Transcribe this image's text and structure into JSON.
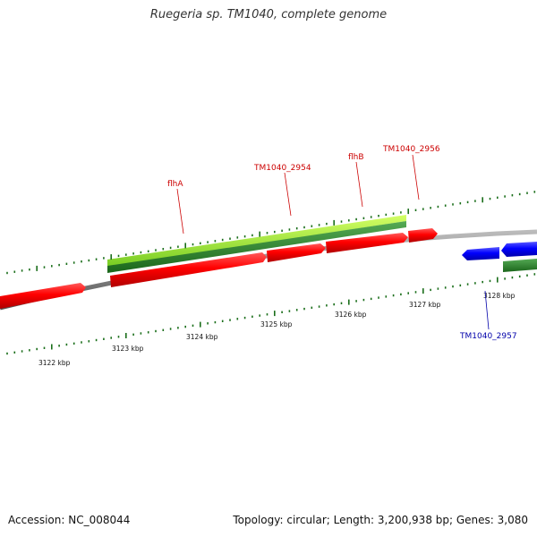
{
  "title": "Ruegeria sp. TM1040, complete genome",
  "footer": {
    "accession": "Accession: NC_008044",
    "summary": "Topology: circular; Length: 3,200,938 bp; Genes: 3,080"
  },
  "colors": {
    "forward_gene": "#ff0000",
    "reverse_gene": "#0000ff",
    "forward_label": "#cc0000",
    "reverse_label": "#0000aa",
    "tick": "#1a6e1a",
    "backbone": "#888888",
    "operon_light": "#99ee33",
    "operon_dark": "#228822"
  },
  "scale_labels": [
    "3122 kbp",
    "3123 kbp",
    "3124 kbp",
    "3125 kbp",
    "3126 kbp",
    "3127 kbp",
    "3128 kbp"
  ],
  "gene_labels": {
    "flhA": "flhA",
    "tm2954": "TM1040_2954",
    "flhB": "flhB",
    "tm2956": "TM1040_2956",
    "tm2957": "TM1040_2957"
  }
}
